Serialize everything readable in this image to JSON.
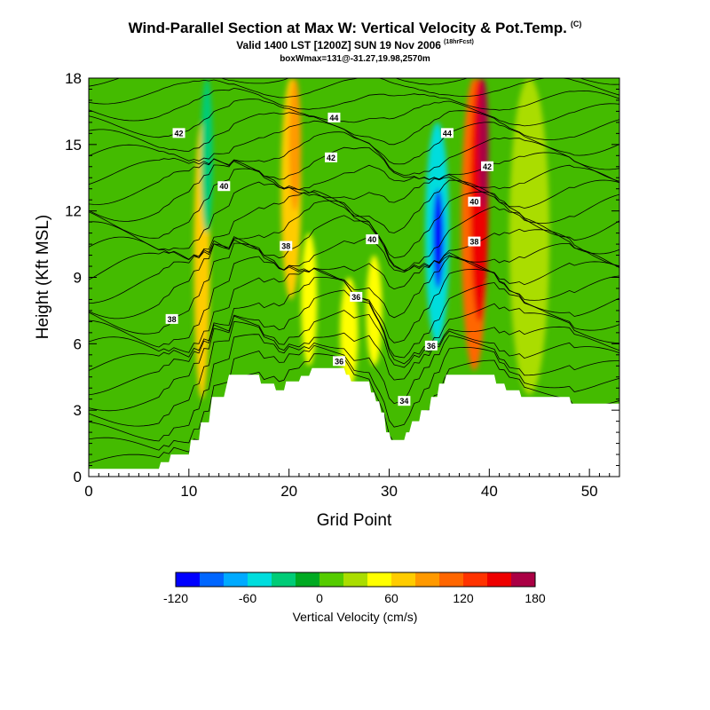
{
  "header": {
    "title": "Wind-Parallel Section at Max W: Vertical Velocity & Pot.Temp.",
    "title_mark": "(C)",
    "subtitle": "Valid 1400 LST [1200Z] SUN 19 Nov 2006",
    "subtitle_mark": "(18hrFcst)",
    "info": "boxWmax=131@-31.27,19.98,2570m"
  },
  "chart_data": {
    "type": "heatmap",
    "xlabel": "Grid Point",
    "ylabel": "Height (Kft MSL)",
    "xlim": [
      0,
      53
    ],
    "ylim": [
      0,
      18
    ],
    "xticks": [
      0,
      10,
      20,
      30,
      40,
      50
    ],
    "yticks": [
      0,
      3,
      6,
      9,
      12,
      15,
      18
    ],
    "terrain_height_kft": [
      [
        0,
        0.35
      ],
      [
        7,
        0.35
      ],
      [
        7.2,
        0.65
      ],
      [
        8,
        0.65
      ],
      [
        8.2,
        1.0
      ],
      [
        10,
        1.0
      ],
      [
        10.2,
        1.65
      ],
      [
        11,
        1.65
      ],
      [
        11.2,
        2.45
      ],
      [
        12,
        2.45
      ],
      [
        12.3,
        3.6
      ],
      [
        13.5,
        3.6
      ],
      [
        14,
        4.6
      ],
      [
        17,
        4.6
      ],
      [
        17.2,
        4.2
      ],
      [
        18.5,
        4.2
      ],
      [
        18.7,
        3.9
      ],
      [
        19.5,
        3.9
      ],
      [
        19.7,
        4.3
      ],
      [
        21,
        4.3
      ],
      [
        21.2,
        4.55
      ],
      [
        22,
        4.55
      ],
      [
        22.3,
        4.9
      ],
      [
        25.5,
        4.9
      ],
      [
        25.7,
        4.6
      ],
      [
        26,
        4.6
      ],
      [
        26.2,
        4.3
      ],
      [
        28,
        4.3
      ],
      [
        28.2,
        3.8
      ],
      [
        28.5,
        3.8
      ],
      [
        28.7,
        3.4
      ],
      [
        29,
        3.4
      ],
      [
        29.2,
        2.9
      ],
      [
        29.5,
        2.9
      ],
      [
        29.7,
        2.0
      ],
      [
        30,
        2.0
      ],
      [
        30.2,
        1.65
      ],
      [
        31.5,
        1.65
      ],
      [
        31.7,
        2.0
      ],
      [
        32,
        2.0
      ],
      [
        32.3,
        2.5
      ],
      [
        33,
        2.5
      ],
      [
        33.2,
        3.0
      ],
      [
        34,
        3.0
      ],
      [
        34.2,
        3.6
      ],
      [
        34.8,
        3.6
      ],
      [
        35,
        4.2
      ],
      [
        35.5,
        4.2
      ],
      [
        35.7,
        4.6
      ],
      [
        40.5,
        4.6
      ],
      [
        40.7,
        4.2
      ],
      [
        41.5,
        4.2
      ],
      [
        41.7,
        3.9
      ],
      [
        43,
        3.9
      ],
      [
        43.2,
        3.6
      ],
      [
        48,
        3.6
      ],
      [
        48.2,
        3.3
      ],
      [
        53,
        3.3
      ]
    ],
    "vertical_velocity_bands": [
      {
        "x": 11.3,
        "width": 1.6,
        "y0": 3.5,
        "y1": 16,
        "w": 70
      },
      {
        "x": 11.8,
        "width": 1.2,
        "y0": 11,
        "y1": 18,
        "w": -40
      },
      {
        "x": 20.2,
        "width": 2.0,
        "y0": 8,
        "y1": 18,
        "w": 70
      },
      {
        "x": 20.6,
        "width": 1.2,
        "y0": 12,
        "y1": 18,
        "w": 90
      },
      {
        "x": 22.0,
        "width": 1.6,
        "y0": 5,
        "y1": 11,
        "w": 45
      },
      {
        "x": 26.0,
        "width": 1.8,
        "y0": 4,
        "y1": 9,
        "w": 40
      },
      {
        "x": 28.5,
        "width": 1.6,
        "y0": 5,
        "y1": 10,
        "w": 45
      },
      {
        "x": 34.8,
        "width": 2.4,
        "y0": 6,
        "y1": 16,
        "w": -50
      },
      {
        "x": 34.9,
        "width": 1.1,
        "y0": 8.5,
        "y1": 13,
        "w": -110
      },
      {
        "x": 38.5,
        "width": 2.6,
        "y0": 4.8,
        "y1": 18,
        "w": 100
      },
      {
        "x": 39.0,
        "width": 1.8,
        "y0": 7,
        "y1": 18,
        "w": 140
      },
      {
        "x": 39.4,
        "width": 1.0,
        "y0": 12,
        "y1": 18,
        "w": 165
      },
      {
        "x": 44,
        "width": 4.0,
        "y0": 3.7,
        "y1": 18,
        "w": 20
      }
    ],
    "theta_contour_labels": [
      {
        "value": "42",
        "x": 9,
        "y": 15.5
      },
      {
        "value": "40",
        "x": 13.5,
        "y": 13.1
      },
      {
        "value": "44",
        "x": 24.5,
        "y": 16.2
      },
      {
        "value": "42",
        "x": 24.2,
        "y": 14.4
      },
      {
        "value": "38",
        "x": 19.7,
        "y": 10.4
      },
      {
        "value": "38",
        "x": 8.3,
        "y": 7.1
      },
      {
        "value": "40",
        "x": 28.3,
        "y": 10.7
      },
      {
        "value": "36",
        "x": 26.7,
        "y": 8.1
      },
      {
        "value": "36",
        "x": 25,
        "y": 5.2
      },
      {
        "value": "34",
        "x": 31.5,
        "y": 3.4
      },
      {
        "value": "36",
        "x": 34.2,
        "y": 5.9
      },
      {
        "value": "44",
        "x": 35.8,
        "y": 15.5
      },
      {
        "value": "42",
        "x": 39.8,
        "y": 14
      },
      {
        "value": "40",
        "x": 38.5,
        "y": 12.4
      },
      {
        "value": "38",
        "x": 38.5,
        "y": 10.6
      }
    ],
    "colorbar": {
      "label": "Vertical Velocity (cm/s)",
      "min": -120,
      "max": 180,
      "step": 20,
      "tick_values": [
        "-120",
        "-60",
        "0",
        "60",
        "120",
        "180"
      ],
      "colors": [
        "#0000ff",
        "#0066ff",
        "#00aaff",
        "#00dddd",
        "#00cc77",
        "#00aa22",
        "#55cc00",
        "#aadd00",
        "#ffff00",
        "#ffcc00",
        "#ff9900",
        "#ff6600",
        "#ff3300",
        "#ee0000",
        "#aa0044"
      ]
    }
  }
}
